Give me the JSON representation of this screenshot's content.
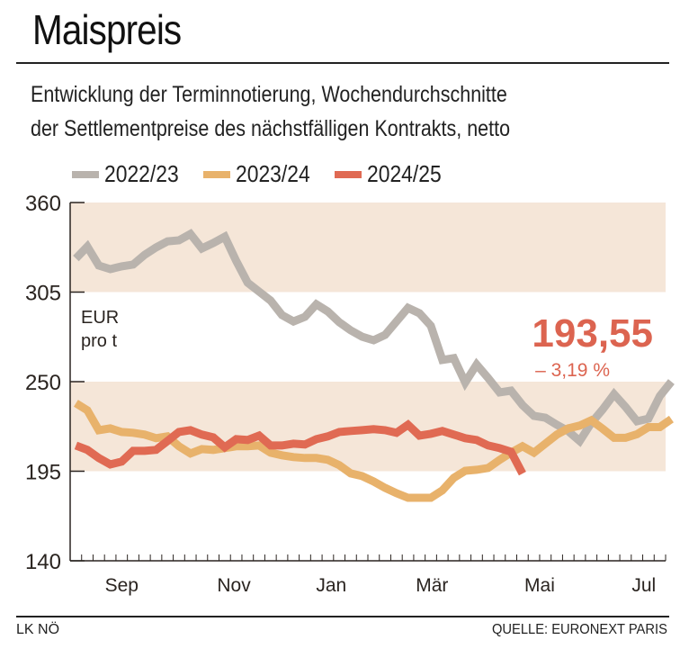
{
  "header": {
    "title": "Maispreis",
    "subtitle_line1": "Entwicklung der Terminnotierung, Wochendurchschnitte",
    "subtitle_line2": "der Settlementpreise des nächstfälligen Kontrakts, netto"
  },
  "footer": {
    "left": "LK NÖ",
    "right": "QUELLE: EURONEXT PARIS"
  },
  "chart_data": {
    "type": "line",
    "title": "Maispreis",
    "subtitle": "Entwicklung der Terminnotierung, Wochendurchschnitte der Settlementpreise des nächstfälligen Kontrakts, netto",
    "ylabel": "EUR pro t",
    "xlabel": "",
    "ylim": [
      140,
      360
    ],
    "yticks": [
      140,
      195,
      250,
      305,
      360
    ],
    "x_unit": "week of marketing year (Aug–Jul)",
    "xlim": [
      0,
      52
    ],
    "xticks": [
      {
        "label": "Sep",
        "week": 4.5
      },
      {
        "label": "Nov",
        "week": 14.3
      },
      {
        "label": "Jan",
        "week": 22.8
      },
      {
        "label": "Mär",
        "week": 31.6
      },
      {
        "label": "Mai",
        "week": 41.0
      },
      {
        "label": "Jul",
        "week": 50.1
      }
    ],
    "minor_tick_count": 52,
    "shaded_bands": [
      [
        305,
        360
      ],
      [
        195,
        250
      ]
    ],
    "legend": {
      "placement": "top"
    },
    "colors": {
      "2022/23": "#b9b3ad",
      "2023/24": "#e8b26b",
      "2024/25": "#e06a53",
      "band": "#f5e6d8",
      "annotation": "#dc6450"
    },
    "series": [
      {
        "name": "2022/23",
        "start_week": 0.5,
        "values": [
          325.7,
          332.9,
          321.3,
          319.1,
          320.8,
          321.9,
          327.9,
          332.4,
          336.2,
          336.8,
          340.7,
          331.8,
          335.1,
          339.0,
          324.1,
          310.8,
          305.3,
          299.8,
          290.9,
          287.0,
          289.8,
          297.5,
          293.1,
          286.5,
          281.5,
          277.6,
          275.4,
          278.7,
          287.0,
          295.3,
          292.0,
          284.3,
          263.3,
          264.4,
          249.5,
          260.5,
          252.2,
          243.4,
          244.5,
          235.6,
          229.0,
          227.9,
          223.5,
          219.6,
          213.5,
          224.6,
          232.9,
          242.3,
          234.5,
          225.7,
          227.3,
          241.2,
          250.0
        ]
      },
      {
        "name": "2023/24",
        "start_week": 0.5,
        "values": [
          236.8,
          232.4,
          220.2,
          221.3,
          219.1,
          218.6,
          217.5,
          215.3,
          216.4,
          210.3,
          205.9,
          208.6,
          208.1,
          209.2,
          210.3,
          210.3,
          210.8,
          206.4,
          204.8,
          203.7,
          203.1,
          203.1,
          202.0,
          198.7,
          193.7,
          192.0,
          188.7,
          184.8,
          181.5,
          178.7,
          178.7,
          178.7,
          183.2,
          190.9,
          195.3,
          195.9,
          197.0,
          201.9,
          206.4,
          210.3,
          206.4,
          211.9,
          217.5,
          221.3,
          223.0,
          226.3,
          221.1,
          215.5,
          215.5,
          217.7,
          222.1,
          222.1,
          227.0
        ]
      },
      {
        "name": "2024/25",
        "start_week": 0.5,
        "values": [
          210.8,
          208.1,
          203.1,
          199.2,
          200.9,
          207.5,
          207.5,
          208.1,
          213.6,
          219.1,
          220.2,
          217.5,
          215.8,
          209.7,
          214.7,
          214.2,
          216.9,
          210.8,
          210.8,
          211.9,
          211.4,
          214.7,
          216.4,
          219.1,
          219.7,
          220.2,
          220.8,
          220.2,
          218.6,
          223.5,
          216.9,
          218.0,
          219.7,
          217.5,
          215.3,
          214.2,
          210.8,
          209.2,
          207.0,
          193.55
        ]
      }
    ],
    "annotation": {
      "value": "193,55",
      "change": "– 3,19 %"
    },
    "axis_labels": {
      "unit_line1": "EUR",
      "unit_line2": "pro t"
    }
  }
}
